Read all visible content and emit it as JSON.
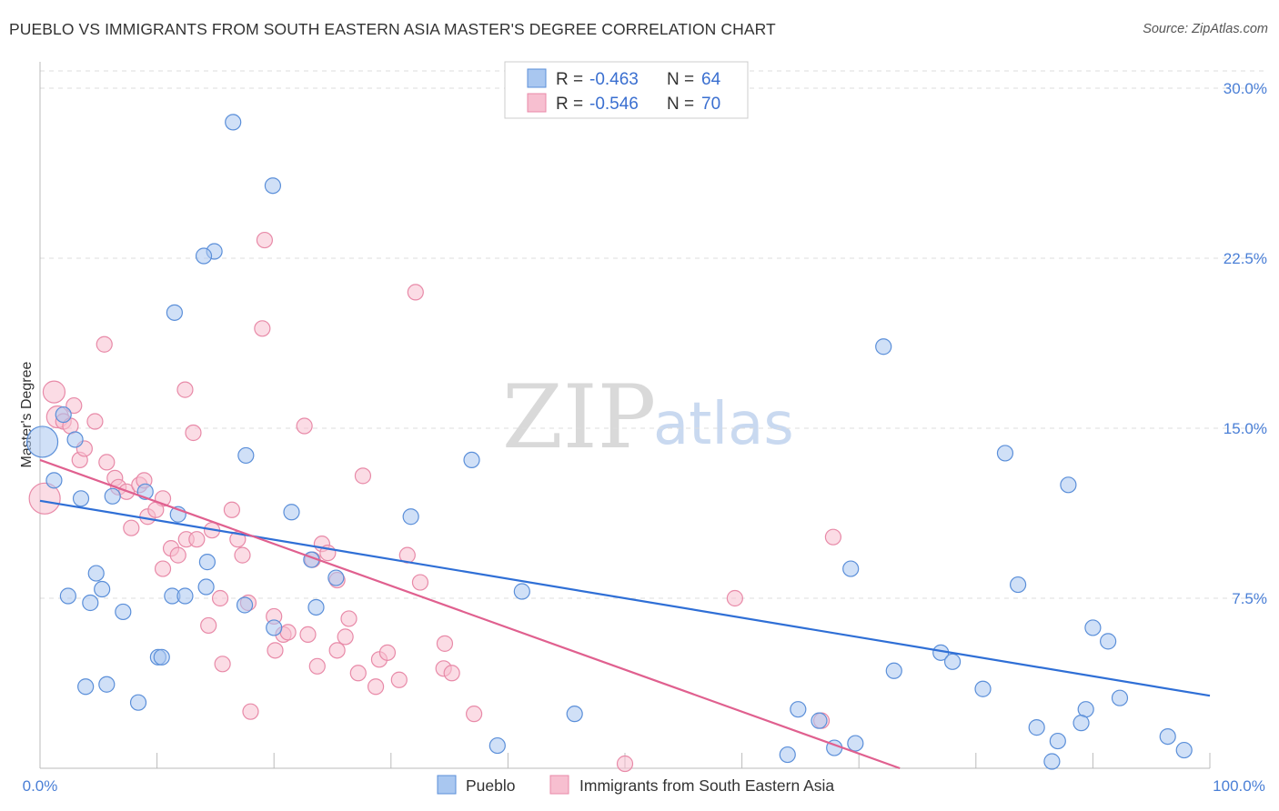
{
  "title": "PUEBLO VS IMMIGRANTS FROM SOUTH EASTERN ASIA MASTER'S DEGREE CORRELATION CHART",
  "source": "Source: ZipAtlas.com",
  "watermark": {
    "zip": "ZIP",
    "atlas": "atlas"
  },
  "colors": {
    "blue_fill": "#a9c7f0",
    "blue_stroke": "#5b8fd9",
    "blue_line": "#2f6fd6",
    "pink_fill": "#f7bfd0",
    "pink_stroke": "#e88aa8",
    "pink_line": "#e0608f",
    "grid": "#dddddd",
    "axis": "#bbbbbb",
    "tick_text": "#4a7fd6"
  },
  "legend_top": {
    "r_label": "R =",
    "n_label": "N =",
    "series": [
      {
        "r": "-0.463",
        "n": "64"
      },
      {
        "r": "-0.546",
        "n": "70"
      }
    ]
  },
  "chart_data": {
    "type": "scatter",
    "title": "PUEBLO VS IMMIGRANTS FROM SOUTH EASTERN ASIA MASTER'S DEGREE CORRELATION CHART",
    "xlabel": "",
    "ylabel": "Master's Degree",
    "xlim": [
      0,
      100
    ],
    "ylim": [
      0,
      31.5
    ],
    "x_tick_labels": [
      "0.0%",
      "100.0%"
    ],
    "y_ticks": [
      7.5,
      15.0,
      22.5,
      30.0
    ],
    "y_tick_labels": [
      "7.5%",
      "15.0%",
      "22.5%",
      "30.0%"
    ],
    "legend_placement": "bottom-center",
    "series": [
      {
        "name": "Pueblo",
        "color": "blue",
        "trend": {
          "x0": 0,
          "y0": 11.8,
          "x1": 100,
          "y1": 3.2
        },
        "points": [
          [
            16.5,
            28.5,
            1
          ],
          [
            19.9,
            25.7,
            1
          ],
          [
            14.9,
            22.8,
            1
          ],
          [
            14.0,
            22.6,
            1
          ],
          [
            11.5,
            20.1,
            1
          ],
          [
            2.0,
            15.6,
            1
          ],
          [
            0.2,
            14.4,
            3
          ],
          [
            3.0,
            14.5,
            1
          ],
          [
            1.2,
            12.7,
            1
          ],
          [
            17.6,
            13.8,
            1
          ],
          [
            36.9,
            13.6,
            1
          ],
          [
            3.5,
            11.9,
            1
          ],
          [
            6.2,
            12.0,
            1
          ],
          [
            9.0,
            12.2,
            1
          ],
          [
            11.8,
            11.2,
            1
          ],
          [
            21.5,
            11.3,
            1
          ],
          [
            31.7,
            11.1,
            1
          ],
          [
            72.1,
            18.6,
            1
          ],
          [
            82.5,
            13.9,
            1
          ],
          [
            87.9,
            12.5,
            1
          ],
          [
            14.3,
            9.1,
            1
          ],
          [
            23.2,
            9.2,
            1
          ],
          [
            25.3,
            8.4,
            1
          ],
          [
            4.8,
            8.6,
            1
          ],
          [
            5.3,
            7.9,
            1
          ],
          [
            14.2,
            8.0,
            1
          ],
          [
            2.4,
            7.6,
            1
          ],
          [
            4.3,
            7.3,
            1
          ],
          [
            11.3,
            7.6,
            1
          ],
          [
            12.4,
            7.6,
            1
          ],
          [
            17.5,
            7.2,
            1
          ],
          [
            23.6,
            7.1,
            1
          ],
          [
            41.2,
            7.8,
            1
          ],
          [
            69.3,
            8.8,
            1
          ],
          [
            83.6,
            8.1,
            1
          ],
          [
            7.1,
            6.9,
            1
          ],
          [
            20.0,
            6.2,
            1
          ],
          [
            10.1,
            4.9,
            1
          ],
          [
            10.4,
            4.9,
            1
          ],
          [
            3.9,
            3.6,
            1
          ],
          [
            5.7,
            3.7,
            1
          ],
          [
            8.4,
            2.9,
            1
          ],
          [
            73.0,
            4.3,
            1
          ],
          [
            77.0,
            5.1,
            1
          ],
          [
            78.0,
            4.7,
            1
          ],
          [
            80.6,
            3.5,
            1
          ],
          [
            90.0,
            6.2,
            1
          ],
          [
            91.3,
            5.6,
            1
          ],
          [
            92.3,
            3.1,
            1
          ],
          [
            89.4,
            2.6,
            1
          ],
          [
            85.2,
            1.8,
            1
          ],
          [
            87.0,
            1.2,
            1
          ],
          [
            89.0,
            2.0,
            1
          ],
          [
            45.7,
            2.4,
            1
          ],
          [
            39.1,
            1.0,
            1
          ],
          [
            64.8,
            2.6,
            1
          ],
          [
            66.6,
            2.1,
            1
          ],
          [
            63.9,
            0.6,
            1
          ],
          [
            67.9,
            0.9,
            1
          ],
          [
            69.7,
            1.1,
            1
          ],
          [
            86.5,
            0.3,
            1
          ],
          [
            96.4,
            1.4,
            1
          ],
          [
            97.8,
            0.8,
            1
          ],
          [
            35.0,
            10.0,
            0
          ]
        ]
      },
      {
        "name": "Immigrants from South Eastern Asia",
        "color": "pink",
        "trend": {
          "x0": 0,
          "y0": 13.6,
          "x1": 73.5,
          "y1": 0.0
        },
        "points": [
          [
            0.4,
            11.9,
            3
          ],
          [
            1.2,
            16.6,
            2
          ],
          [
            1.5,
            15.5,
            2
          ],
          [
            2.0,
            15.3,
            1
          ],
          [
            2.6,
            15.1,
            1
          ],
          [
            2.9,
            16.0,
            1
          ],
          [
            5.5,
            18.7,
            1
          ],
          [
            4.7,
            15.3,
            1
          ],
          [
            3.4,
            13.6,
            1
          ],
          [
            3.8,
            14.1,
            1
          ],
          [
            5.7,
            13.5,
            1
          ],
          [
            6.4,
            12.8,
            1
          ],
          [
            6.7,
            12.4,
            1
          ],
          [
            7.4,
            12.2,
            1
          ],
          [
            8.5,
            12.5,
            1
          ],
          [
            8.9,
            12.7,
            1
          ],
          [
            10.5,
            11.9,
            1
          ],
          [
            9.2,
            11.1,
            1
          ],
          [
            9.9,
            11.4,
            1
          ],
          [
            7.8,
            10.6,
            1
          ],
          [
            11.2,
            9.7,
            1
          ],
          [
            11.8,
            9.4,
            1
          ],
          [
            12.5,
            10.1,
            1
          ],
          [
            13.4,
            10.1,
            1
          ],
          [
            14.7,
            10.5,
            1
          ],
          [
            16.4,
            11.4,
            1
          ],
          [
            16.9,
            10.1,
            1
          ],
          [
            17.3,
            9.4,
            1
          ],
          [
            10.5,
            8.8,
            1
          ],
          [
            12.4,
            16.7,
            1
          ],
          [
            13.1,
            14.8,
            1
          ],
          [
            19.2,
            23.3,
            1
          ],
          [
            19.0,
            19.4,
            1
          ],
          [
            22.6,
            15.1,
            1
          ],
          [
            32.1,
            21.0,
            1
          ],
          [
            27.6,
            12.9,
            1
          ],
          [
            24.1,
            9.9,
            1
          ],
          [
            23.3,
            9.2,
            1
          ],
          [
            24.6,
            9.5,
            1
          ],
          [
            25.4,
            8.3,
            1
          ],
          [
            31.4,
            9.4,
            1
          ],
          [
            32.5,
            8.2,
            1
          ],
          [
            14.4,
            6.3,
            1
          ],
          [
            15.4,
            7.5,
            1
          ],
          [
            17.8,
            7.3,
            1
          ],
          [
            20.0,
            6.7,
            1
          ],
          [
            20.8,
            5.9,
            1
          ],
          [
            21.2,
            6.0,
            1
          ],
          [
            22.9,
            5.9,
            1
          ],
          [
            26.4,
            6.6,
            1
          ],
          [
            26.1,
            5.8,
            1
          ],
          [
            25.4,
            5.2,
            1
          ],
          [
            20.1,
            5.2,
            1
          ],
          [
            23.7,
            4.5,
            1
          ],
          [
            15.6,
            4.6,
            1
          ],
          [
            27.2,
            4.2,
            1
          ],
          [
            29.0,
            4.8,
            1
          ],
          [
            29.7,
            5.1,
            1
          ],
          [
            30.7,
            3.9,
            1
          ],
          [
            28.7,
            3.6,
            1
          ],
          [
            34.6,
            5.5,
            1
          ],
          [
            34.5,
            4.4,
            1
          ],
          [
            35.2,
            4.2,
            1
          ],
          [
            37.1,
            2.4,
            1
          ],
          [
            18.0,
            2.5,
            1
          ],
          [
            59.4,
            7.5,
            1
          ],
          [
            67.8,
            10.2,
            1
          ],
          [
            66.8,
            2.1,
            1
          ],
          [
            50.0,
            0.2,
            1
          ],
          [
            16.9,
            11.2,
            0
          ]
        ]
      }
    ]
  },
  "legend_bottom": {
    "items": [
      {
        "label": "Pueblo"
      },
      {
        "label": "Immigrants from South Eastern Asia"
      }
    ]
  }
}
